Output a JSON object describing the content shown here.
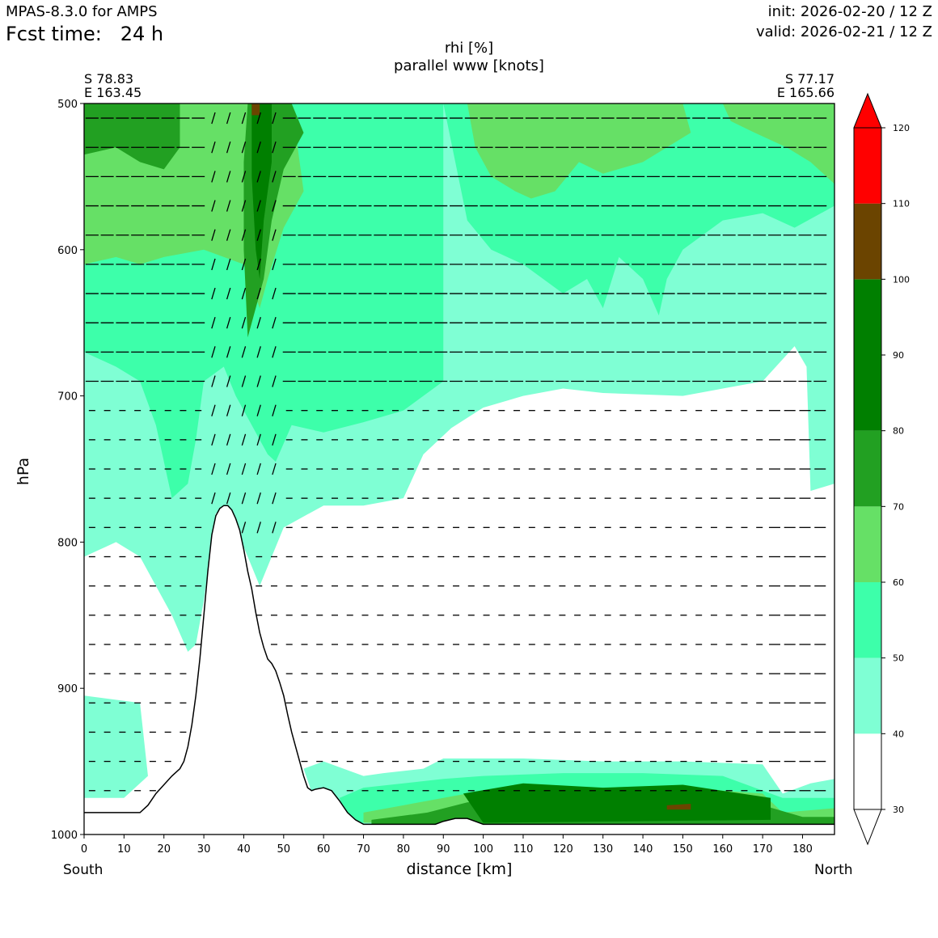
{
  "header": {
    "model": "MPAS-8.3.0 for AMPS",
    "fcst_label": "Fcst time:   24 h",
    "init": "init: 2026-02-20 / 12 Z",
    "valid": "valid: 2026-02-21 / 12 Z"
  },
  "chart_data": {
    "type": "contourf",
    "title": "rhi [%]",
    "subtitle": "parallel www [knots]",
    "xlabel": "distance [km]",
    "ylabel": "hPa",
    "xlim": [
      0,
      188
    ],
    "ylim": [
      1000,
      500
    ],
    "x_ticks": [
      0,
      10,
      20,
      30,
      40,
      50,
      60,
      70,
      80,
      90,
      100,
      110,
      120,
      130,
      140,
      150,
      160,
      170,
      180
    ],
    "y_ticks": [
      500,
      600,
      700,
      800,
      900,
      1000
    ],
    "left_end": {
      "lat": "S 78.83",
      "lon": "E 163.45",
      "dir": "South"
    },
    "right_end": {
      "lat": "S 77.17",
      "lon": "E 165.66",
      "dir": "North"
    },
    "colorbar": {
      "levels": [
        30,
        40,
        50,
        60,
        70,
        80,
        90,
        100,
        110,
        120
      ],
      "colors": [
        "#ffffff",
        "#7fffd4",
        "#3dffaa",
        "#66e066",
        "#22a022",
        "#007f00",
        "#007f00",
        "#6b4400",
        "#ff0000"
      ],
      "extend": "both"
    },
    "terrain_profile_hPa": [
      [
        0,
        985
      ],
      [
        10,
        985
      ],
      [
        14,
        985
      ],
      [
        16,
        980
      ],
      [
        18,
        972
      ],
      [
        20,
        966
      ],
      [
        22,
        960
      ],
      [
        24,
        955
      ],
      [
        25,
        950
      ],
      [
        26,
        940
      ],
      [
        27,
        925
      ],
      [
        28,
        905
      ],
      [
        29,
        880
      ],
      [
        30,
        850
      ],
      [
        31,
        820
      ],
      [
        32,
        795
      ],
      [
        33,
        782
      ],
      [
        34,
        777
      ],
      [
        35,
        775
      ],
      [
        36,
        775
      ],
      [
        37,
        778
      ],
      [
        38,
        784
      ],
      [
        39,
        792
      ],
      [
        40,
        805
      ],
      [
        41,
        820
      ],
      [
        42,
        832
      ],
      [
        43,
        848
      ],
      [
        44,
        862
      ],
      [
        45,
        872
      ],
      [
        46,
        880
      ],
      [
        47,
        883
      ],
      [
        48,
        888
      ],
      [
        49,
        896
      ],
      [
        50,
        905
      ],
      [
        51,
        918
      ],
      [
        52,
        930
      ],
      [
        53,
        940
      ],
      [
        54,
        950
      ],
      [
        55,
        960
      ],
      [
        56,
        968
      ],
      [
        57,
        970
      ],
      [
        58,
        969
      ],
      [
        60,
        968
      ],
      [
        62,
        970
      ],
      [
        64,
        977
      ],
      [
        66,
        985
      ],
      [
        68,
        990
      ],
      [
        70,
        993
      ],
      [
        75,
        993
      ],
      [
        88,
        993
      ],
      [
        90,
        991
      ],
      [
        93,
        989
      ],
      [
        96,
        989
      ],
      [
        100,
        993
      ],
      [
        188,
        993
      ]
    ],
    "rhi_regions": [
      {
        "level": 30,
        "note": "dry, below 40%: lower troposphere north of 50 km (720-950 hPa)"
      },
      {
        "level": 40,
        "note": "40-50% band along 690-800 hPa and near surface south of 15 km"
      },
      {
        "level": 50,
        "note": "50-60% in mid layer 580-720 hPa"
      },
      {
        "level": 60,
        "note": "60-70% upper left 520-610 hPa and upper right 500-550 hPa"
      },
      {
        "level": 70,
        "note": "70-80% top-left 500-545 hPa and plume near 42-48 km"
      },
      {
        "level": 80,
        "note": "80-100% narrow plume 41-46 km and near surface 95-185 km"
      },
      {
        "level": 100,
        "note": "100-110% tiny patches at 42 km top and 148 km surface"
      }
    ]
  }
}
